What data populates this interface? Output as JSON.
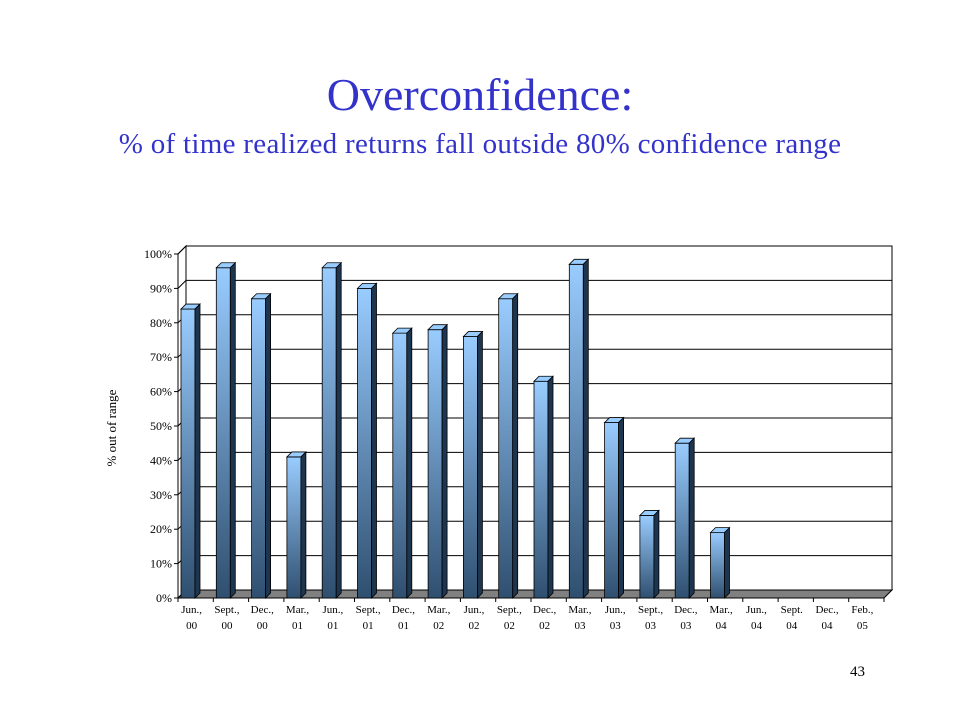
{
  "slide": {
    "title": "Overconfidence:",
    "subtitle": "% of time realized returns fall outside 80% confidence range",
    "number": "43"
  },
  "colors": {
    "title": "#3333cc",
    "bar_top": "#99ccff",
    "bar_bottom": "#2f4f6f",
    "floor": "#808080"
  },
  "chart_data": {
    "type": "bar",
    "ylabel": "% out of range",
    "xlabel": "",
    "ylim": [
      0,
      100
    ],
    "yticks": [
      "0%",
      "10%",
      "20%",
      "30%",
      "40%",
      "50%",
      "60%",
      "70%",
      "80%",
      "90%",
      "100%"
    ],
    "grid": true,
    "categories": [
      [
        "Jun.,",
        "00"
      ],
      [
        "Sept.,",
        "00"
      ],
      [
        "Dec.,",
        "00"
      ],
      [
        "Mar.,",
        "01"
      ],
      [
        "Jun.,",
        "01"
      ],
      [
        "Sept.,",
        "01"
      ],
      [
        "Dec.,",
        "01"
      ],
      [
        "Mar.,",
        "02"
      ],
      [
        "Jun.,",
        "02"
      ],
      [
        "Sept.,",
        "02"
      ],
      [
        "Dec.,",
        "02"
      ],
      [
        "Mar.,",
        "03"
      ],
      [
        "Jun.,",
        "03"
      ],
      [
        "Sept.,",
        "03"
      ],
      [
        "Dec.,",
        "03"
      ],
      [
        "Mar.,",
        "04"
      ],
      [
        "Jun.,",
        "04"
      ],
      [
        "Sept.",
        "04"
      ],
      [
        "Dec.,",
        "04"
      ],
      [
        "Feb.,",
        "05"
      ]
    ],
    "values": [
      84,
      96,
      87,
      41,
      96,
      90,
      77,
      78,
      76,
      87,
      63,
      97,
      51,
      24,
      45,
      19,
      null,
      null,
      null,
      null
    ]
  }
}
